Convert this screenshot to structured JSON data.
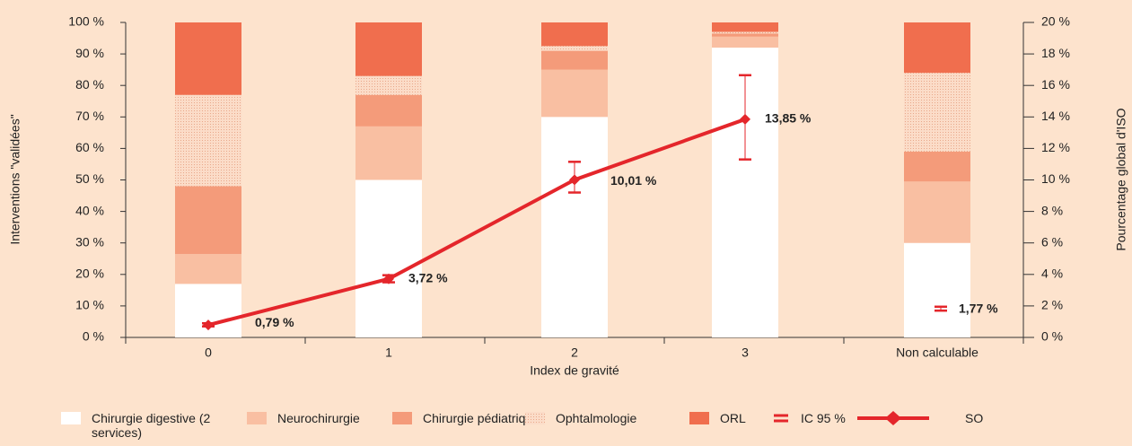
{
  "chart_data": {
    "type": "bar",
    "stacked": true,
    "xlabel": "Index de gravité",
    "ylabel": "Interventions \"validées\"",
    "y2label": "Pourcentage global d'ISO",
    "categories": [
      "0",
      "1",
      "2",
      "3",
      "Non calculable"
    ],
    "ylim": [
      0,
      100
    ],
    "yticks": [
      {
        "value": 0,
        "label": "0 %"
      },
      {
        "value": 10,
        "label": "10 %"
      },
      {
        "value": 20,
        "label": "20 %"
      },
      {
        "value": 30,
        "label": "30 %"
      },
      {
        "value": 40,
        "label": "40 %"
      },
      {
        "value": 50,
        "label": "50 %"
      },
      {
        "value": 60,
        "label": "60 %"
      },
      {
        "value": 70,
        "label": "70 %"
      },
      {
        "value": 80,
        "label": "80 %"
      },
      {
        "value": 90,
        "label": "90 %"
      },
      {
        "value": 100,
        "label": "100 %"
      }
    ],
    "y2lim": [
      0,
      20
    ],
    "y2ticks": [
      {
        "value": 0,
        "label": "0 %"
      },
      {
        "value": 2,
        "label": "2 %"
      },
      {
        "value": 4,
        "label": "4 %"
      },
      {
        "value": 6,
        "label": "6 %"
      },
      {
        "value": 8,
        "label": "8 %"
      },
      {
        "value": 10,
        "label": "10 %"
      },
      {
        "value": 12,
        "label": "12 %"
      },
      {
        "value": 14,
        "label": "14 %"
      },
      {
        "value": 16,
        "label": "16 %"
      },
      {
        "value": 18,
        "label": "18 %"
      },
      {
        "value": 20,
        "label": "20 %"
      }
    ],
    "series": [
      {
        "name": "Chirurgie digestive (2 services)",
        "color": "#ffffff",
        "values": [
          17,
          50,
          70,
          92,
          30
        ]
      },
      {
        "name": "Neurochirurgie",
        "color": "#f9bfa2",
        "values": [
          9.5,
          17,
          15,
          3.5,
          19.5
        ]
      },
      {
        "name": "Chirurgie pédiatrique",
        "color": "#f49b7a",
        "values": [
          21.5,
          10,
          6,
          1,
          9.5
        ]
      },
      {
        "name": "Ophtalmologie",
        "color": "#f8cdb3",
        "hatch": "dotted",
        "values": [
          29,
          6,
          1.5,
          0.5,
          25
        ]
      },
      {
        "name": "ORL",
        "color": "#f06e4e",
        "values": [
          23,
          17,
          7.5,
          3,
          16
        ]
      },
      {
        "name": "IC 95 %",
        "type": "errorbar",
        "axis": "y2",
        "color": "#e4262b",
        "values": [
          0.79,
          3.72,
          10.01,
          13.85,
          1.77
        ],
        "low": [
          0.7,
          3.5,
          9.2,
          11.3,
          1.7
        ],
        "high": [
          0.9,
          3.95,
          11.15,
          16.65,
          1.95
        ],
        "value_labels": [
          "0,79 %",
          "3,72 %",
          "10,01 %",
          "13,85 %",
          "1,77 %"
        ]
      },
      {
        "name": "SO",
        "type": "line",
        "axis": "y2",
        "color": "#e4262b",
        "values": [
          0.79,
          3.72,
          10.01,
          13.85,
          null
        ]
      }
    ]
  }
}
